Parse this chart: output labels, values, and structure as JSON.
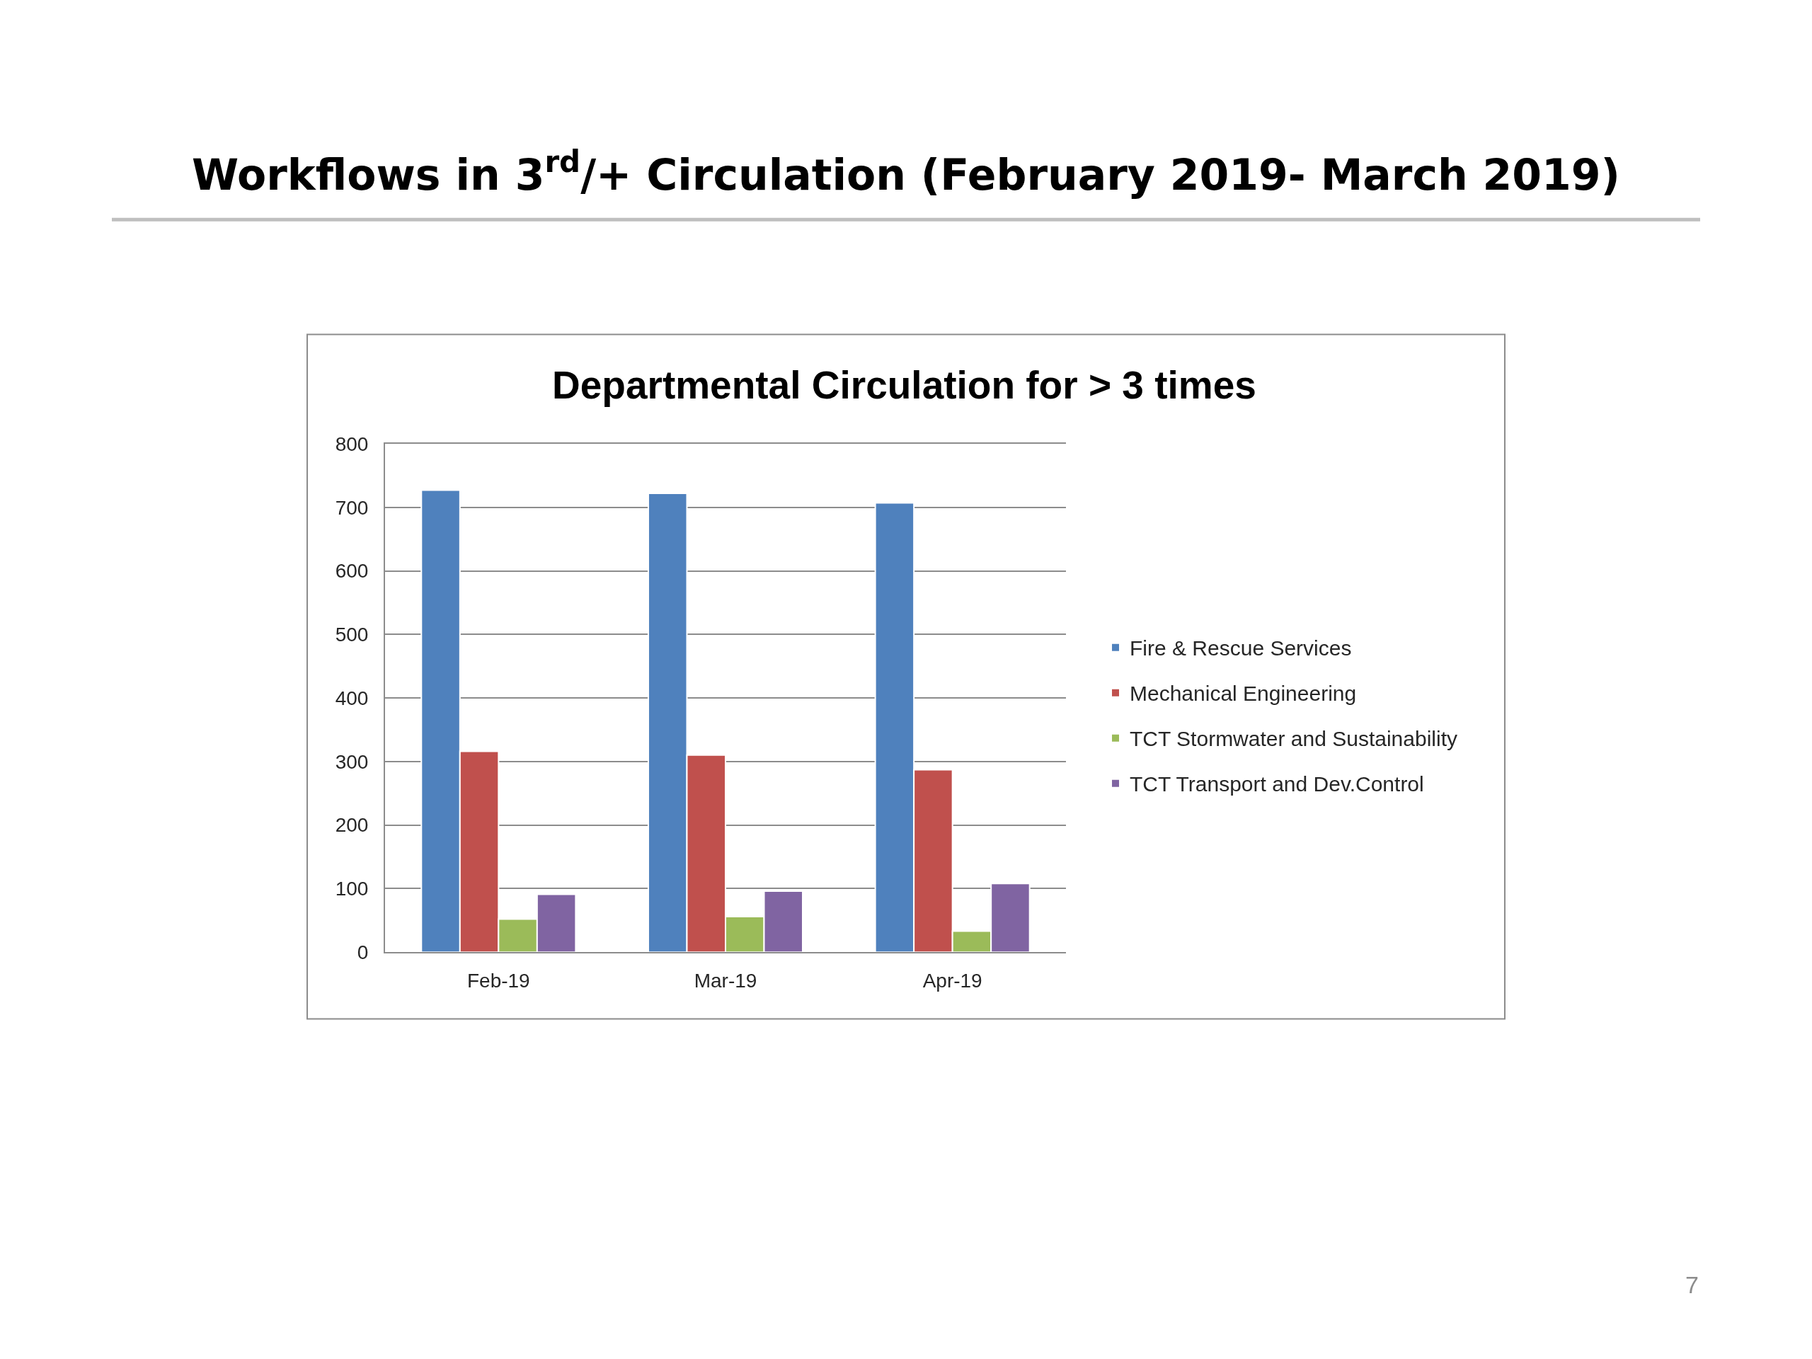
{
  "chart_data": {
    "type": "bar",
    "title": "Workflows in 3$^{rd}$/+ Circulation (February 2019- March 2019)",
    "subtitle": "Departmental Circulation for > 3 times",
    "categories": [
      "Feb-19",
      "Mar-19",
      "Apr-19"
    ],
    "series": [
      {
        "name": "Fire & Rescue Services",
        "color": "#4f81bd",
        "values": [
          727,
          722,
          707
        ]
      },
      {
        "name": "Mechanical Engineering",
        "color": "#c0504d",
        "values": [
          316,
          310,
          287
        ]
      },
      {
        "name": "TCT Stormwater and Sustainability",
        "color": "#9bbb59",
        "values": [
          52,
          56,
          33
        ]
      },
      {
        "name": "TCT Transport and Dev.Control",
        "color": "#8064a2",
        "values": [
          91,
          96,
          108
        ]
      }
    ],
    "ylim": [
      0,
      800
    ],
    "yticks": [
      0,
      100,
      200,
      300,
      400,
      500,
      600,
      700,
      800
    ],
    "grid": "y",
    "legend": "right",
    "annotations": [
      "7"
    ]
  }
}
